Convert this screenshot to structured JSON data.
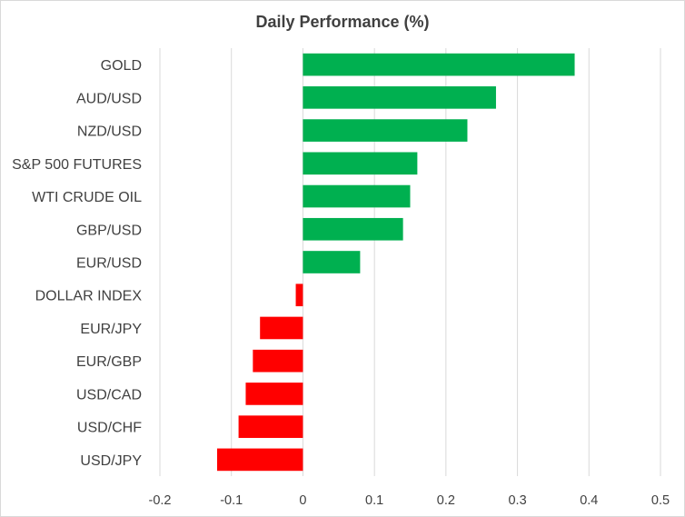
{
  "chart_data": {
    "type": "bar",
    "orientation": "horizontal",
    "title": "Daily Performance (%)",
    "xlabel": "",
    "ylabel": "",
    "categories": [
      "GOLD",
      "AUD/USD",
      "NZD/USD",
      "S&P 500 FUTURES",
      "WTI CRUDE OIL",
      "GBP/USD",
      "EUR/USD",
      "DOLLAR INDEX",
      "EUR/JPY",
      "EUR/GBP",
      "USD/CAD",
      "USD/CHF",
      "USD/JPY"
    ],
    "values": [
      0.38,
      0.27,
      0.23,
      0.16,
      0.15,
      0.14,
      0.08,
      -0.01,
      -0.06,
      -0.07,
      -0.08,
      -0.09,
      -0.12
    ],
    "xlim": [
      -0.2,
      0.5
    ],
    "xticks": [
      "-0.2",
      "-0.1",
      "0",
      "0.1",
      "0.2",
      "0.3",
      "0.4",
      "0.5"
    ],
    "grid": "vertical",
    "legend": "none",
    "colors": {
      "positive": "#00b050",
      "negative": "#ff0000",
      "grid": "#d9d9d9",
      "text": "#404040"
    }
  }
}
